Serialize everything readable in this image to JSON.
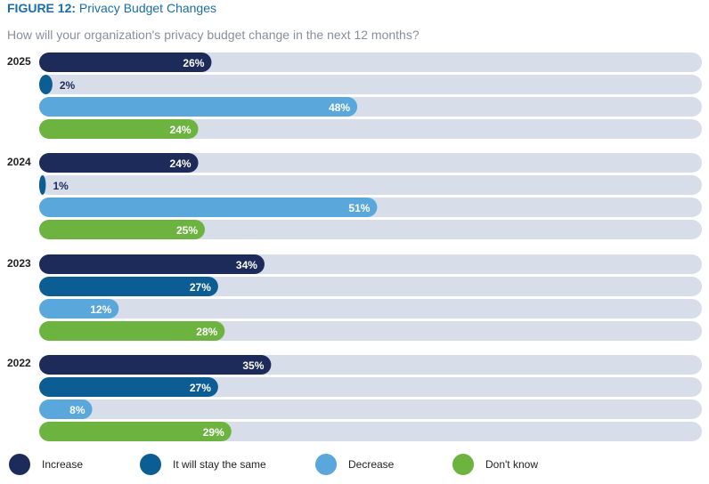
{
  "header": {
    "figure_label": "FIGURE 12:",
    "title": "Privacy Budget Changes",
    "subtitle": "How will your organization's privacy budget change in the next 12 months?"
  },
  "colors": {
    "increase": "#1c2b59",
    "same": "#0b5d94",
    "decrease": "#5aa7db",
    "dont_know": "#6db33f",
    "track": "#d8dee9",
    "light_text": "#ffffff",
    "dark_text": "#1c2b59"
  },
  "chart_data": {
    "type": "bar",
    "orientation": "horizontal",
    "title": "Privacy Budget Changes",
    "subtitle": "How will your organization's privacy budget change in the next 12 months?",
    "xlim": [
      0,
      100
    ],
    "unit": "%",
    "groups": [
      {
        "year": "2025",
        "values": [
          26,
          2,
          48,
          24
        ]
      },
      {
        "year": "2024",
        "values": [
          24,
          1,
          51,
          25
        ]
      },
      {
        "year": "2023",
        "values": [
          34,
          27,
          12,
          28
        ]
      },
      {
        "year": "2022",
        "values": [
          35,
          27,
          8,
          29
        ]
      }
    ],
    "series": [
      {
        "name": "Increase",
        "key": "increase"
      },
      {
        "name": "It will stay the same",
        "key": "same"
      },
      {
        "name": "Decrease",
        "key": "decrease"
      },
      {
        "name": "Don't know",
        "key": "dont_know"
      }
    ],
    "legend_position": "bottom"
  },
  "legend": {
    "items": [
      {
        "label": "Increase",
        "key": "increase"
      },
      {
        "label": "It will stay the same",
        "key": "same"
      },
      {
        "label": "Decrease",
        "key": "decrease"
      },
      {
        "label": "Don't know",
        "key": "dont_know"
      }
    ]
  }
}
